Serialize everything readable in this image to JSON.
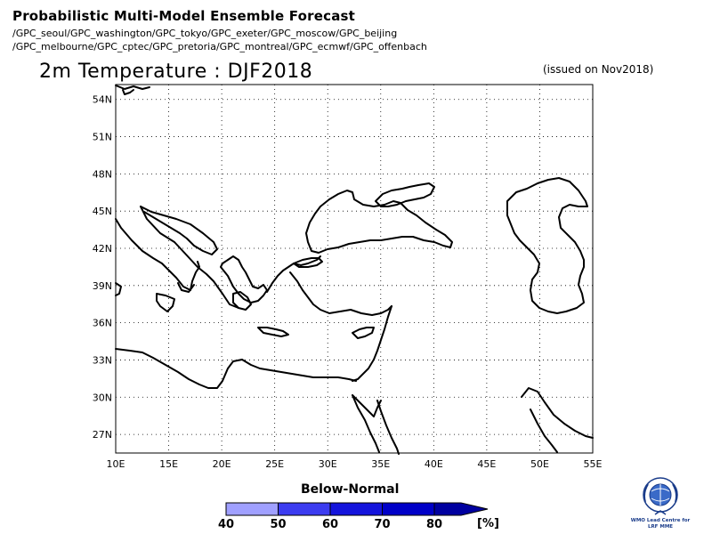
{
  "header": {
    "title": "Probabilistic Multi-Model Ensemble Forecast",
    "gpc_line_1": "/GPC_seoul/GPC_washington/GPC_tokyo/GPC_exeter/GPC_moscow/GPC_beijing",
    "gpc_line_2": "/GPC_melbourne/GPC_cptec/GPC_pretoria/GPC_montreal/GPC_ecmwf/GPC_offenbach"
  },
  "map": {
    "title": "2m Temperature : DJF2018",
    "issued": "(issued on Nov2018)",
    "lon_ticks": [
      "10E",
      "15E",
      "20E",
      "25E",
      "30E",
      "35E",
      "40E",
      "45E",
      "50E",
      "55E"
    ],
    "lat_ticks": [
      "54N",
      "51N",
      "48N",
      "45N",
      "42N",
      "39N",
      "36N",
      "33N",
      "30N",
      "27N"
    ],
    "lon_range": [
      10,
      55
    ],
    "lat_range": [
      25.5,
      55.2
    ]
  },
  "legend": {
    "title": "Below-Normal",
    "ticks": [
      "40",
      "50",
      "60",
      "70",
      "80"
    ],
    "unit": "[%]",
    "colors": [
      "#a0a0ff",
      "#3c3cf0",
      "#1414dc",
      "#0000c8",
      "#0000a0"
    ]
  },
  "logo": {
    "icon": "wmo-emblem-icon",
    "line_1": "WMO Lead Centre for",
    "line_2": "LRF MME"
  }
}
